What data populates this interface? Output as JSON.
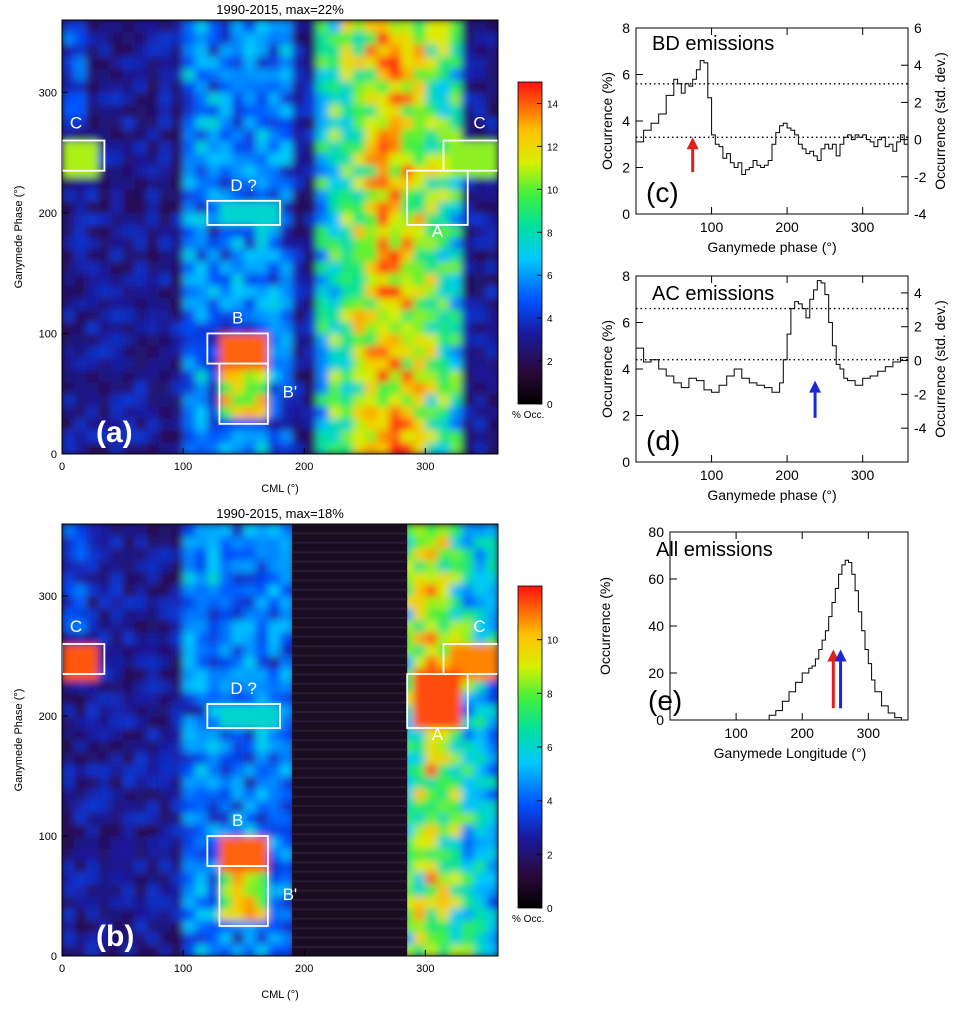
{
  "chart_data": [
    {
      "type": "heatmap",
      "panel_label": "(a)",
      "title": "1990-2015,  max=22%",
      "xlabel": "CML (°)",
      "ylabel": "Ganymede Phase (°)",
      "xlim": [
        0,
        360
      ],
      "ylim": [
        0,
        360
      ],
      "xticks": [
        "0",
        "100",
        "200",
        "300"
      ],
      "yticks": [
        "0",
        "100",
        "200",
        "300"
      ],
      "colorbar": {
        "label": "% Occ.",
        "min": 0,
        "max": 15,
        "ticks": [
          "0",
          "2",
          "4",
          "6",
          "8",
          "10",
          "12",
          "14"
        ]
      },
      "regions": [
        {
          "name": "C",
          "cml": [
            0,
            35
          ],
          "phase": [
            235,
            260
          ]
        },
        {
          "name": "C",
          "cml": [
            315,
            360
          ],
          "phase": [
            235,
            260
          ]
        },
        {
          "name": "D ?",
          "cml": [
            120,
            180
          ],
          "phase": [
            190,
            210
          ]
        },
        {
          "name": "A",
          "cml": [
            285,
            335
          ],
          "phase": [
            190,
            235
          ]
        },
        {
          "name": "B",
          "cml": [
            120,
            170
          ],
          "phase": [
            75,
            100
          ]
        },
        {
          "name": "B'",
          "cml": [
            130,
            170
          ],
          "phase": [
            25,
            75
          ]
        }
      ],
      "main_band_cml": [
        210,
        330
      ]
    },
    {
      "type": "heatmap",
      "panel_label": "(b)",
      "title": "1990-2015,  max=18%",
      "xlabel": "CML (°)",
      "ylabel": "Ganymede Phase (°)",
      "xlim": [
        0,
        360
      ],
      "ylim": [
        0,
        360
      ],
      "xticks": [
        "0",
        "100",
        "200",
        "300"
      ],
      "yticks": [
        "0",
        "100",
        "200",
        "300"
      ],
      "colorbar": {
        "label": "% Occ.",
        "min": 0,
        "max": 12,
        "ticks": [
          "0",
          "2",
          "4",
          "6",
          "8",
          "10"
        ]
      },
      "regions": [
        {
          "name": "C",
          "cml": [
            0,
            35
          ],
          "phase": [
            235,
            260
          ]
        },
        {
          "name": "C",
          "cml": [
            315,
            360
          ],
          "phase": [
            235,
            260
          ]
        },
        {
          "name": "D ?",
          "cml": [
            120,
            180
          ],
          "phase": [
            190,
            210
          ]
        },
        {
          "name": "A",
          "cml": [
            285,
            335
          ],
          "phase": [
            190,
            235
          ]
        },
        {
          "name": "B",
          "cml": [
            120,
            170
          ],
          "phase": [
            75,
            100
          ]
        },
        {
          "name": "B'",
          "cml": [
            130,
            170
          ],
          "phase": [
            25,
            75
          ]
        }
      ],
      "gap_cml": [
        190,
        285
      ]
    },
    {
      "type": "line",
      "panel_label": "(c)",
      "title": "BD emissions",
      "xlabel": "Ganymede phase (°)",
      "ylabel": "Occurrence (%)",
      "ylabel_right": "Occurrence (std. dev.)",
      "xlim": [
        0,
        360
      ],
      "ylim": [
        0,
        8
      ],
      "ylim_right": [
        -4,
        6
      ],
      "xticks": [
        "100",
        "200",
        "300"
      ],
      "yticks": [
        "0",
        "2",
        "4",
        "6",
        "8"
      ],
      "yticks_right": [
        "-4",
        "-2",
        "0",
        "2",
        "4",
        "6"
      ],
      "hlines": [
        5.6,
        3.3
      ],
      "arrow": {
        "x": 75,
        "color": "red"
      },
      "x": [
        0,
        10,
        20,
        30,
        40,
        50,
        55,
        60,
        65,
        70,
        75,
        80,
        85,
        90,
        95,
        100,
        105,
        110,
        115,
        120,
        125,
        130,
        135,
        140,
        145,
        150,
        155,
        160,
        165,
        170,
        175,
        180,
        185,
        190,
        195,
        200,
        205,
        210,
        215,
        220,
        225,
        230,
        235,
        240,
        245,
        250,
        255,
        260,
        265,
        270,
        275,
        280,
        285,
        290,
        295,
        300,
        305,
        310,
        315,
        320,
        325,
        330,
        335,
        340,
        345,
        350,
        355,
        360
      ],
      "values": [
        3.1,
        3.6,
        3.9,
        4.3,
        5.1,
        5.8,
        5.6,
        5.2,
        5.6,
        5.5,
        5.8,
        6.2,
        6.6,
        6.5,
        5.0,
        3.4,
        3.0,
        2.9,
        2.4,
        2.6,
        2.2,
        2.0,
        2.2,
        1.7,
        1.9,
        2.0,
        2.3,
        2.1,
        2.0,
        2.1,
        2.3,
        3.0,
        3.5,
        3.8,
        3.9,
        3.7,
        3.6,
        3.4,
        3.0,
        2.8,
        2.6,
        2.7,
        2.5,
        2.3,
        2.8,
        3.0,
        2.8,
        3.0,
        2.5,
        3.0,
        3.3,
        3.4,
        3.2,
        3.4,
        3.3,
        3.4,
        3.2,
        3.1,
        2.9,
        3.2,
        3.3,
        2.9,
        3.0,
        2.7,
        3.1,
        3.4,
        3.0,
        3.2
      ]
    },
    {
      "type": "line",
      "panel_label": "(d)",
      "title": "AC emissions",
      "xlabel": "Ganymede phase (°)",
      "ylabel": "Occurrence (%)",
      "ylabel_right": "Occurrence (std. dev.)",
      "xlim": [
        0,
        360
      ],
      "ylim": [
        0,
        8
      ],
      "ylim_right": [
        -6,
        5
      ],
      "xticks": [
        "100",
        "200",
        "300"
      ],
      "yticks": [
        "0",
        "2",
        "4",
        "6",
        "8"
      ],
      "yticks_right": [
        "-4",
        "-2",
        "0",
        "2",
        "4"
      ],
      "hlines": [
        6.6,
        4.4
      ],
      "arrow": {
        "x": 237,
        "color": "blue"
      },
      "x": [
        0,
        10,
        20,
        30,
        40,
        50,
        60,
        70,
        80,
        90,
        100,
        110,
        120,
        130,
        140,
        150,
        160,
        170,
        180,
        190,
        195,
        200,
        205,
        210,
        215,
        220,
        225,
        230,
        235,
        240,
        245,
        250,
        255,
        260,
        265,
        270,
        275,
        280,
        290,
        300,
        310,
        320,
        330,
        340,
        350,
        360
      ],
      "values": [
        4.9,
        4.3,
        4.4,
        4.0,
        3.7,
        3.4,
        3.2,
        3.6,
        3.5,
        3.1,
        3.0,
        3.3,
        3.7,
        4.0,
        3.6,
        3.4,
        3.3,
        3.2,
        3.0,
        3.4,
        4.4,
        5.5,
        6.6,
        6.9,
        6.8,
        6.6,
        6.2,
        7.0,
        7.4,
        7.8,
        7.7,
        7.2,
        6.0,
        5.0,
        4.2,
        4.0,
        3.6,
        3.5,
        3.3,
        3.6,
        3.7,
        3.9,
        4.1,
        4.3,
        4.5,
        4.8
      ]
    },
    {
      "type": "line",
      "panel_label": "(e)",
      "title": "All emissions",
      "xlabel": "Ganymede Longitude (°)",
      "ylabel": "Occurrence (%)",
      "xlim": [
        0,
        360
      ],
      "ylim": [
        0,
        80
      ],
      "xticks": [
        "100",
        "200",
        "300"
      ],
      "yticks": [
        "0",
        "20",
        "40",
        "60",
        "80"
      ],
      "arrows": [
        {
          "x": 247,
          "color": "red"
        },
        {
          "x": 258,
          "color": "blue"
        }
      ],
      "x": [
        140,
        150,
        160,
        170,
        180,
        190,
        200,
        210,
        215,
        220,
        225,
        230,
        235,
        240,
        245,
        250,
        255,
        260,
        265,
        270,
        275,
        280,
        285,
        290,
        295,
        300,
        305,
        310,
        320,
        330,
        340,
        350
      ],
      "values": [
        0,
        2,
        4,
        8,
        12,
        16,
        20,
        22,
        23,
        26,
        30,
        34,
        38,
        44,
        50,
        56,
        62,
        66,
        68,
        67,
        62,
        55,
        46,
        38,
        30,
        24,
        17,
        12,
        6,
        3,
        1,
        0
      ]
    }
  ]
}
